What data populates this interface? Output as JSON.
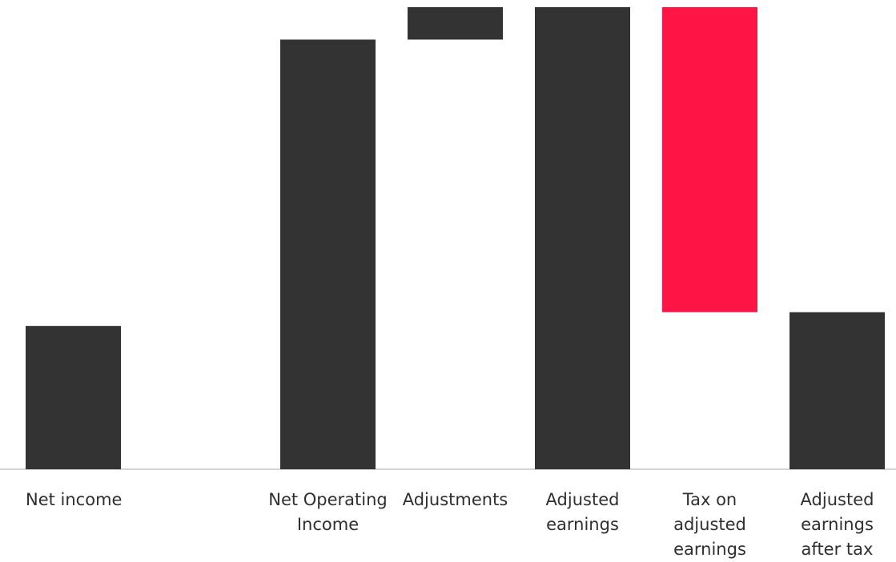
{
  "chart_data": {
    "type": "bar",
    "subtype": "waterfall",
    "title": "",
    "xlabel": "",
    "ylabel": "",
    "grid": false,
    "legend": "none",
    "ylim": [
      0,
      1000
    ],
    "categories": [
      "Net income",
      "",
      "Net Operating Income",
      "Adjustments",
      "Adjusted earnings",
      "Tax on adjusted earnings",
      "Adjusted earnings after tax"
    ],
    "category_lines": [
      [
        "Net income"
      ],
      [],
      [
        "Net Operating",
        "Income"
      ],
      [
        "Adjustments"
      ],
      [
        "Adjusted",
        "earnings"
      ],
      [
        "Tax on",
        "adjusted",
        "earnings"
      ],
      [
        "Adjusted",
        "earnings",
        "after tax"
      ]
    ],
    "bars": [
      {
        "category": "Net income",
        "start": 0,
        "end": 310,
        "kind": "total"
      },
      {
        "category": "",
        "start": 0,
        "end": 0,
        "kind": "empty"
      },
      {
        "category": "Net Operating Income",
        "start": 0,
        "end": 930,
        "kind": "total"
      },
      {
        "category": "Adjustments",
        "start": 930,
        "end": 1000,
        "kind": "increase"
      },
      {
        "category": "Adjusted earnings",
        "start": 0,
        "end": 1000,
        "kind": "total"
      },
      {
        "category": "Tax on adjusted earnings",
        "start": 340,
        "end": 1000,
        "kind": "decrease"
      },
      {
        "category": "Adjusted earnings after tax",
        "start": 0,
        "end": 340,
        "kind": "total"
      }
    ],
    "colors": {
      "total": "#333333",
      "increase": "#333333",
      "decrease": "#ff1446",
      "baseline": "#d4d4d4",
      "label": "#2f2f2f"
    }
  }
}
